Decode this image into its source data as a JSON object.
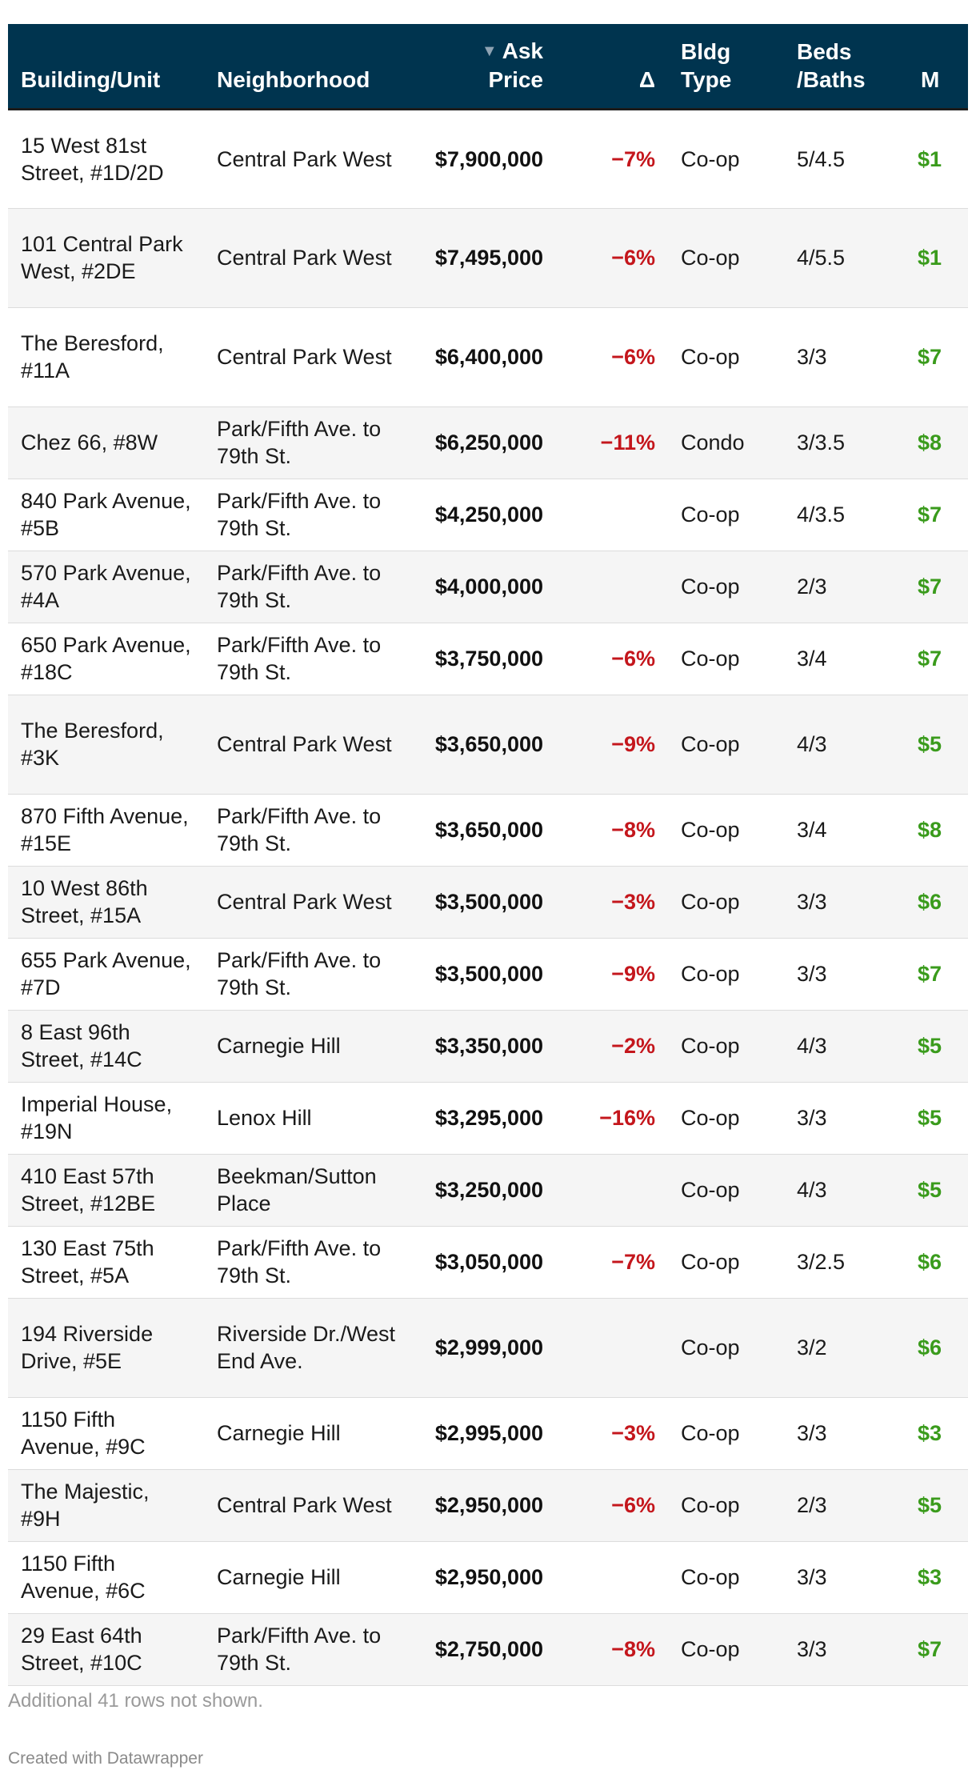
{
  "table": {
    "columns": [
      {
        "label": "Building/Unit"
      },
      {
        "label": "Neighborhood"
      },
      {
        "label": "Ask Price",
        "line1": "Ask",
        "line2": "Price",
        "sorted": "descending"
      },
      {
        "label": "Δ"
      },
      {
        "label": "Bldg Type",
        "line1": "Bldg",
        "line2": "Type"
      },
      {
        "label": "Beds /Baths",
        "line1": "Beds",
        "line2": "/Baths"
      },
      {
        "label": "M"
      }
    ],
    "rows": [
      {
        "building": "15 West 81st Street, #1D/2D",
        "neighborhood": "Central Park West",
        "ask": "$7,900,000",
        "delta": "−7%",
        "type": "Co-op",
        "beds": "5/4.5",
        "more": "$1"
      },
      {
        "building": "101 Central Park West, #2DE",
        "neighborhood": "Central Park West",
        "ask": "$7,495,000",
        "delta": "−6%",
        "type": "Co-op",
        "beds": "4/5.5",
        "more": "$1"
      },
      {
        "building": "The Beresford, #11A",
        "neighborhood": "Central Park West",
        "ask": "$6,400,000",
        "delta": "−6%",
        "type": "Co-op",
        "beds": "3/3",
        "more": "$7"
      },
      {
        "building": "Chez 66, #8W",
        "neighborhood": "Park/Fifth Ave. to 79th St.",
        "ask": "$6,250,000",
        "delta": "−11%",
        "type": "Condo",
        "beds": "3/3.5",
        "more": "$8"
      },
      {
        "building": "840 Park Avenue, #5B",
        "neighborhood": "Park/Fifth Ave. to 79th St.",
        "ask": "$4,250,000",
        "delta": "",
        "type": "Co-op",
        "beds": "4/3.5",
        "more": "$7"
      },
      {
        "building": "570 Park Avenue, #4A",
        "neighborhood": "Park/Fifth Ave. to 79th St.",
        "ask": "$4,000,000",
        "delta": "",
        "type": "Co-op",
        "beds": "2/3",
        "more": "$7"
      },
      {
        "building": "650 Park Avenue, #18C",
        "neighborhood": "Park/Fifth Ave. to 79th St.",
        "ask": "$3,750,000",
        "delta": "−6%",
        "type": "Co-op",
        "beds": "3/4",
        "more": "$7"
      },
      {
        "building": "The Beresford, #3K",
        "neighborhood": "Central Park West",
        "ask": "$3,650,000",
        "delta": "−9%",
        "type": "Co-op",
        "beds": "4/3",
        "more": "$5"
      },
      {
        "building": "870 Fifth Avenue, #15E",
        "neighborhood": "Park/Fifth Ave. to 79th St.",
        "ask": "$3,650,000",
        "delta": "−8%",
        "type": "Co-op",
        "beds": "3/4",
        "more": "$8"
      },
      {
        "building": "10 West 86th Street, #15A",
        "neighborhood": "Central Park West",
        "ask": "$3,500,000",
        "delta": "−3%",
        "type": "Co-op",
        "beds": "3/3",
        "more": "$6"
      },
      {
        "building": "655 Park Avenue, #7D",
        "neighborhood": "Park/Fifth Ave. to 79th St.",
        "ask": "$3,500,000",
        "delta": "−9%",
        "type": "Co-op",
        "beds": "3/3",
        "more": "$7"
      },
      {
        "building": "8 East 96th Street, #14C",
        "neighborhood": "Carnegie Hill",
        "ask": "$3,350,000",
        "delta": "−2%",
        "type": "Co-op",
        "beds": "4/3",
        "more": "$5"
      },
      {
        "building": "Imperial House, #19N",
        "neighborhood": "Lenox Hill",
        "ask": "$3,295,000",
        "delta": "−16%",
        "type": "Co-op",
        "beds": "3/3",
        "more": "$5"
      },
      {
        "building": "410 East 57th Street, #12BE",
        "neighborhood": "Beekman/Sutton Place",
        "ask": "$3,250,000",
        "delta": "",
        "type": "Co-op",
        "beds": "4/3",
        "more": "$5"
      },
      {
        "building": "130 East 75th Street, #5A",
        "neighborhood": "Park/Fifth Ave. to 79th St.",
        "ask": "$3,050,000",
        "delta": "−7%",
        "type": "Co-op",
        "beds": "3/2.5",
        "more": "$6"
      },
      {
        "building": "194 Riverside Drive, #5E",
        "neighborhood": "Riverside Dr./West End Ave.",
        "ask": "$2,999,000",
        "delta": "",
        "type": "Co-op",
        "beds": "3/2",
        "more": "$6"
      },
      {
        "building": "1150 Fifth Avenue, #9C",
        "neighborhood": "Carnegie Hill",
        "ask": "$2,995,000",
        "delta": "−3%",
        "type": "Co-op",
        "beds": "3/3",
        "more": "$3"
      },
      {
        "building": "The Majestic, #9H",
        "neighborhood": "Central Park West",
        "ask": "$2,950,000",
        "delta": "−6%",
        "type": "Co-op",
        "beds": "2/3",
        "more": "$5"
      },
      {
        "building": "1150 Fifth Avenue, #6C",
        "neighborhood": "Carnegie Hill",
        "ask": "$2,950,000",
        "delta": "",
        "type": "Co-op",
        "beds": "3/3",
        "more": "$3"
      },
      {
        "building": "29 East 64th Street, #10C",
        "neighborhood": "Park/Fifth Ave. to 79th St.",
        "ask": "$2,750,000",
        "delta": "−8%",
        "type": "Co-op",
        "beds": "3/3",
        "more": "$7"
      }
    ]
  },
  "footer": {
    "note": "Additional 41 rows not shown.",
    "credit": "Created with Datawrapper"
  },
  "colors": {
    "header_bg": "#00344f",
    "negative": "#c4161c",
    "positive": "#3a9b1c"
  }
}
